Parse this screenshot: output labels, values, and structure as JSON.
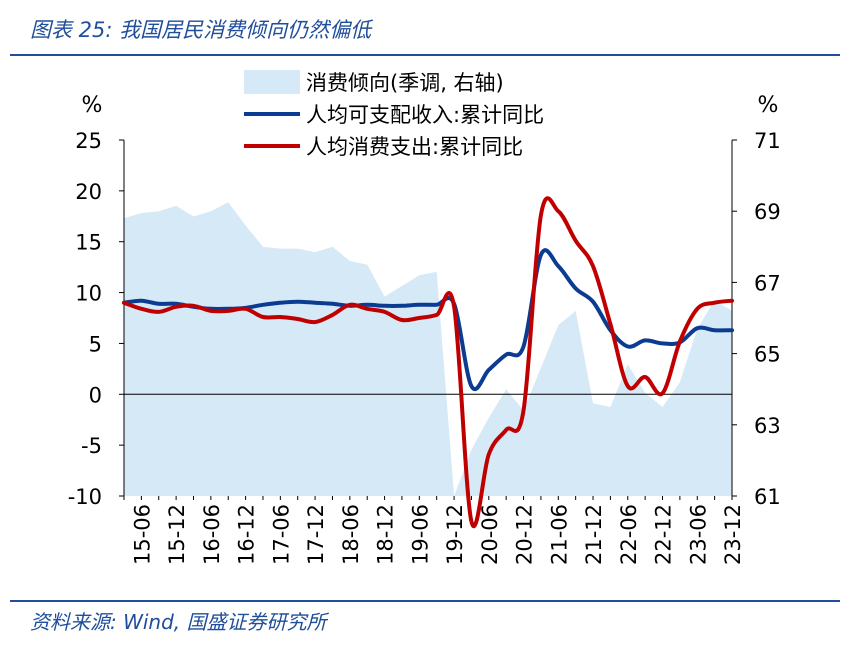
{
  "figure": {
    "title": "图表 25: 我国居民消费倾向仍然偏低",
    "source": "资料来源: Wind, 国盛证券研究所",
    "accent_color": "#1f4e9a"
  },
  "chart_data": {
    "type": "line",
    "left_unit": "%",
    "right_unit": "%",
    "left_axis": {
      "ylim": [
        -10,
        25
      ],
      "ticks": [
        25,
        20,
        15,
        10,
        5,
        0,
        -5,
        -10
      ]
    },
    "right_axis": {
      "ylim": [
        61,
        71
      ],
      "ticks": [
        71,
        69,
        67,
        65,
        63,
        61
      ]
    },
    "x_tick_labels": [
      "15-06",
      "15-12",
      "16-06",
      "16-12",
      "17-06",
      "17-12",
      "18-06",
      "18-12",
      "19-06",
      "19-12",
      "20-06",
      "20-12",
      "21-06",
      "21-12",
      "22-06",
      "22-12",
      "23-06",
      "23-12"
    ],
    "x_range": [
      "2015-03",
      "2023-12"
    ],
    "legend_placement": "top-center",
    "series": [
      {
        "name": "消费倾向(季调, 右轴)",
        "type": "area",
        "axis": "right",
        "color": "#d6e9f7",
        "x": [
          "2015-03",
          "2015-06",
          "2015-09",
          "2015-12",
          "2016-03",
          "2016-06",
          "2016-09",
          "2016-12",
          "2017-03",
          "2017-06",
          "2017-09",
          "2017-12",
          "2018-03",
          "2018-06",
          "2018-09",
          "2018-12",
          "2019-03",
          "2019-06",
          "2019-09",
          "2019-12",
          "2020-03",
          "2020-06",
          "2020-09",
          "2020-12",
          "2021-03",
          "2021-06",
          "2021-09",
          "2021-12",
          "2022-03",
          "2022-06",
          "2022-09",
          "2022-12",
          "2023-03",
          "2023-06",
          "2023-09",
          "2023-12"
        ],
        "values": [
          68.8,
          68.95,
          69.0,
          69.15,
          68.85,
          69.0,
          69.25,
          68.6,
          68.0,
          67.95,
          67.95,
          67.85,
          68.0,
          67.6,
          67.5,
          66.6,
          66.9,
          67.2,
          67.3,
          61.0,
          62.3,
          63.2,
          64.0,
          63.4,
          64.6,
          65.8,
          66.2,
          63.6,
          63.5,
          64.7,
          63.9,
          63.5,
          64.2,
          65.7,
          66.5,
          66.2
        ]
      },
      {
        "name": "人均可支配收入:累计同比",
        "type": "line",
        "axis": "left",
        "color": "#0b3c91",
        "x": [
          "2015-03",
          "2015-06",
          "2015-09",
          "2015-12",
          "2016-03",
          "2016-06",
          "2016-09",
          "2016-12",
          "2017-03",
          "2017-06",
          "2017-09",
          "2017-12",
          "2018-03",
          "2018-06",
          "2018-09",
          "2018-12",
          "2019-03",
          "2019-06",
          "2019-09",
          "2019-12",
          "2020-03",
          "2020-06",
          "2020-09",
          "2020-12",
          "2021-03",
          "2021-06",
          "2021-09",
          "2021-12",
          "2022-03",
          "2022-06",
          "2022-09",
          "2022-12",
          "2023-03",
          "2023-06",
          "2023-09",
          "2023-12"
        ],
        "values": [
          9.0,
          9.2,
          8.9,
          8.9,
          8.6,
          8.4,
          8.4,
          8.5,
          8.8,
          9.0,
          9.1,
          9.0,
          8.9,
          8.7,
          8.8,
          8.7,
          8.7,
          8.8,
          8.8,
          8.9,
          0.8,
          2.4,
          3.9,
          4.7,
          13.7,
          12.6,
          10.4,
          9.1,
          6.3,
          4.7,
          5.3,
          5.0,
          5.1,
          6.5,
          6.3,
          6.3
        ]
      },
      {
        "name": "人均消费支出:累计同比",
        "type": "line",
        "axis": "left",
        "color": "#c00000",
        "x": [
          "2015-03",
          "2015-06",
          "2015-09",
          "2015-12",
          "2016-03",
          "2016-06",
          "2016-09",
          "2016-12",
          "2017-03",
          "2017-06",
          "2017-09",
          "2017-12",
          "2018-03",
          "2018-06",
          "2018-09",
          "2018-12",
          "2019-03",
          "2019-06",
          "2019-09",
          "2019-12",
          "2020-03",
          "2020-06",
          "2020-09",
          "2020-12",
          "2021-03",
          "2021-06",
          "2021-09",
          "2021-12",
          "2022-03",
          "2022-06",
          "2022-09",
          "2022-12",
          "2023-03",
          "2023-06",
          "2023-09",
          "2023-12"
        ],
        "values": [
          9.0,
          8.4,
          8.1,
          8.6,
          8.7,
          8.2,
          8.2,
          8.4,
          7.6,
          7.6,
          7.4,
          7.1,
          7.8,
          8.8,
          8.4,
          8.1,
          7.3,
          7.5,
          7.8,
          8.6,
          -12.5,
          -5.9,
          -3.5,
          -1.6,
          17.6,
          18.0,
          15.1,
          12.6,
          6.9,
          0.8,
          1.7,
          0.1,
          5.2,
          8.4,
          9.0,
          9.2
        ]
      }
    ]
  }
}
